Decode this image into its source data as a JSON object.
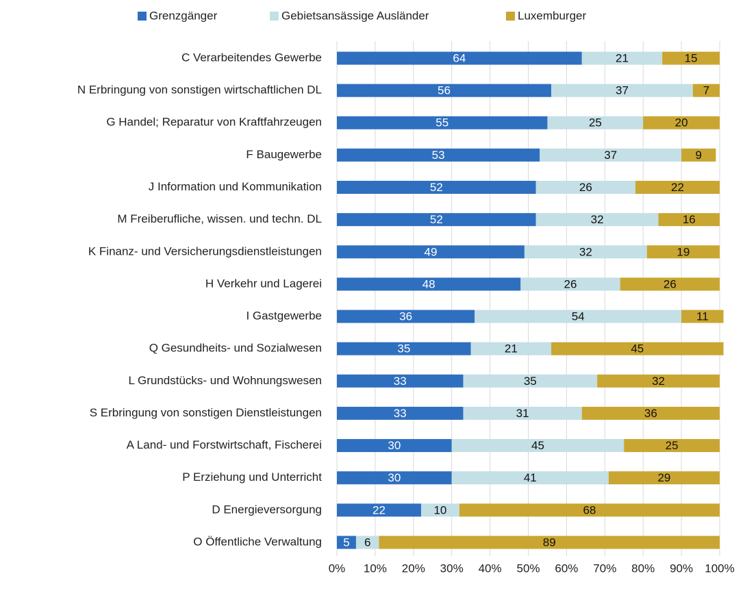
{
  "chart_data": {
    "type": "bar",
    "orientation": "horizontal",
    "stacked": true,
    "categories": [
      "C Verarbeitendes Gewerbe",
      "N Erbringung von sonstigen wirtschaftlichen DL",
      "G Handel; Reparatur von Kraftfahrzeugen",
      "F Baugewerbe",
      "J Information und Kommunikation",
      "M Freiberufliche, wissen. und techn. DL",
      "K Finanz- und Versicherungsdienstleistungen",
      "H Verkehr und Lagerei",
      "I Gastgewerbe",
      "Q Gesundheits- und Sozialwesen",
      "L Grundstücks- und Wohnungswesen",
      "S Erbringung von sonstigen Dienstleistungen",
      "A Land- und Forstwirtschaft, Fischerei",
      "P Erziehung und Unterricht",
      "D Energieversorgung",
      "O Öffentliche Verwaltung"
    ],
    "series": [
      {
        "name": "Grenzgänger",
        "color": "#2f6fbf",
        "values": [
          64,
          56,
          55,
          53,
          52,
          52,
          49,
          48,
          36,
          35,
          33,
          33,
          30,
          30,
          22,
          5
        ]
      },
      {
        "name": "Gebietsansässige Ausländer",
        "color": "#c4dfe5",
        "values": [
          21,
          37,
          25,
          37,
          26,
          32,
          32,
          26,
          54,
          21,
          35,
          31,
          45,
          41,
          10,
          6
        ]
      },
      {
        "name": "Luxemburger",
        "color": "#c9a631",
        "values": [
          15,
          7,
          20,
          9,
          22,
          16,
          19,
          26,
          11,
          45,
          32,
          36,
          25,
          29,
          68,
          89
        ]
      }
    ],
    "xlim": [
      0,
      100
    ],
    "xticks": [
      {
        "value": 0,
        "label": "0%"
      },
      {
        "value": 10,
        "label": "10%"
      },
      {
        "value": 20,
        "label": "20%"
      },
      {
        "value": 30,
        "label": "30%"
      },
      {
        "value": 40,
        "label": "40%"
      },
      {
        "value": 50,
        "label": "50%"
      },
      {
        "value": 60,
        "label": "60%"
      },
      {
        "value": 70,
        "label": "70%"
      },
      {
        "value": 80,
        "label": "80%"
      },
      {
        "value": 90,
        "label": "90%"
      },
      {
        "value": 100,
        "label": "100%"
      }
    ],
    "grid": true,
    "legend": "top"
  }
}
